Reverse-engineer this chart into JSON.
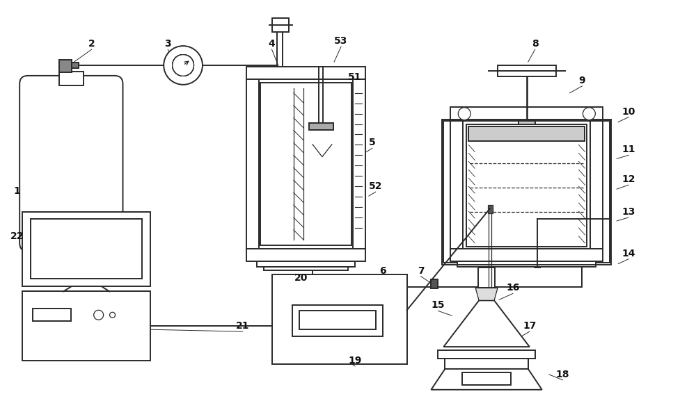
{
  "bg_color": "#ffffff",
  "lc": "#2a2a2a",
  "lw": 1.4,
  "lw_thin": 0.9,
  "fs": 10,
  "fw": "bold",
  "fig_w": 10.0,
  "fig_h": 6.03,
  "border_color": "#444444"
}
